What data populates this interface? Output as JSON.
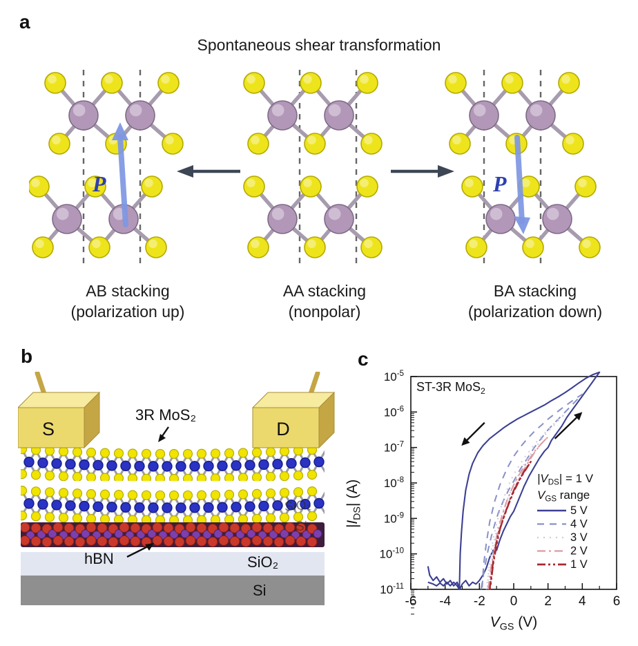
{
  "panel_a": {
    "label": "a",
    "title": "Spontaneous shear transformation",
    "polarization_label": "P",
    "captions": [
      {
        "line1": "AB stacking",
        "line2": "(polarization up)"
      },
      {
        "line1": "AA stacking",
        "line2": "(nonpolar)"
      },
      {
        "line1": "BA stacking",
        "line2": "(polarization down)"
      }
    ],
    "structures": [
      {
        "stacking": "AB",
        "shift": -24,
        "dashed_x": [
          79,
          161
        ],
        "polarization": "up"
      },
      {
        "stacking": "AA",
        "shift": 0,
        "dashed_x": [
          104,
          186
        ],
        "polarization": null
      },
      {
        "stacking": "BA",
        "shift": 24,
        "dashed_x": [
          79,
          161
        ],
        "polarization": "down"
      }
    ],
    "colors": {
      "mo_atom": "#b297b8",
      "mo_edge": "#7d6a85",
      "s_atom": "#eee41c",
      "s_edge": "#b3a900",
      "bond": "#a79cae",
      "dashed_line": "#666666",
      "p_arrow": "#7e97e3",
      "p_text": "#2e3fb0",
      "transform_arrow": "#3c4654"
    }
  },
  "panel_b": {
    "label": "b",
    "source_label": "S",
    "drain_label": "D",
    "mos2_label": "3R MoS₂",
    "hbn_label": "hBN",
    "sio2_label": "SiO₂",
    "si_label": "Si",
    "ghost_sio2_label": "SiO₂",
    "ghost_si_label": "Si",
    "colors": {
      "gold": "#ecd96e",
      "gold_top": "#f6eb9e",
      "gold_side": "#c4a645",
      "gold_edge": "#a88f35",
      "s_atom": "#f0e400",
      "s_edge": "#b8ae00",
      "mo_atom": "#2a33c4",
      "mo_edge": "#151c86",
      "bond": "#9b9ba6",
      "hbn_bg": "#3f1d3c",
      "hbn_red": "#c9382a",
      "hbn_purple": "#7b3fae",
      "sio2_band": "#e2e6f1",
      "si_band": "#8f8f8f"
    }
  },
  "panel_c": {
    "label": "c"
  },
  "chart_data": {
    "type": "line",
    "title": {
      "pre": "ST-3R MoS",
      "sub": "2",
      "post": ""
    },
    "xlabel": {
      "pre": "V",
      "sub": "GS",
      "post": " (V)"
    },
    "ylabel": {
      "pre": "|I",
      "sub": "DS",
      "post": "| (A)"
    },
    "xlim": [
      -6,
      6
    ],
    "ylim_log10": [
      -11,
      -5
    ],
    "x_major_ticks": [
      -6,
      -4,
      -2,
      0,
      2,
      4,
      6
    ],
    "x_minor_ticks": [
      -5,
      -3,
      -1,
      1,
      3,
      5
    ],
    "y_decade_exponents": [
      -5,
      -6,
      -7,
      -8,
      -9,
      -10,
      -11
    ],
    "grid": false,
    "legend": {
      "position": "inside-right",
      "header1": {
        "pre": "|V",
        "sub": "DS",
        "post": "| = 1 V"
      },
      "header2": {
        "pre": "V",
        "sub": "GS",
        "post": " range"
      }
    },
    "sweep_arrows": [
      {
        "from": [
          -1.7,
          -6.3
        ],
        "to": [
          -3.05,
          -6.95
        ]
      },
      {
        "from": [
          2.4,
          -6.75
        ],
        "to": [
          4.0,
          -6.0
        ]
      }
    ],
    "series": [
      {
        "name": "5 V",
        "color": "#3b3f93",
        "dash": "",
        "width": 2.1,
        "points_log10": [
          [
            -5.0,
            -10.35
          ],
          [
            -4.9,
            -10.6
          ],
          [
            -4.7,
            -10.75
          ],
          [
            -4.5,
            -10.65
          ],
          [
            -4.3,
            -10.8
          ],
          [
            -4.1,
            -10.7
          ],
          [
            -3.9,
            -10.85
          ],
          [
            -3.7,
            -10.75
          ],
          [
            -3.5,
            -10.9
          ],
          [
            -3.3,
            -10.8
          ],
          [
            -3.15,
            -11.0
          ],
          [
            -3.0,
            -10.85
          ],
          [
            -2.8,
            -10.75
          ],
          [
            -2.6,
            -10.9
          ],
          [
            -2.4,
            -10.8
          ],
          [
            -2.2,
            -10.85
          ],
          [
            -2.0,
            -10.75
          ],
          [
            -1.8,
            -10.6
          ],
          [
            -1.6,
            -10.4
          ],
          [
            -1.4,
            -10.1
          ],
          [
            -1.2,
            -9.9
          ],
          [
            -1.0,
            -9.9
          ],
          [
            -0.8,
            -9.6
          ],
          [
            -0.6,
            -9.35
          ],
          [
            -0.4,
            -9.15
          ],
          [
            -0.2,
            -8.95
          ],
          [
            0,
            -8.8
          ],
          [
            0.3,
            -8.45
          ],
          [
            0.6,
            -8.1
          ],
          [
            0.9,
            -7.8
          ],
          [
            1.2,
            -7.55
          ],
          [
            1.5,
            -7.3
          ],
          [
            1.8,
            -7.1
          ],
          [
            2.0,
            -7.0
          ],
          [
            2.2,
            -6.8
          ],
          [
            2.5,
            -6.6
          ],
          [
            2.8,
            -6.4
          ],
          [
            3.1,
            -6.15
          ],
          [
            3.4,
            -5.95
          ],
          [
            3.7,
            -5.75
          ],
          [
            4.0,
            -5.55
          ],
          [
            4.3,
            -5.35
          ],
          [
            4.6,
            -5.15
          ],
          [
            4.85,
            -4.98
          ],
          [
            5.0,
            -4.88
          ],
          [
            4.6,
            -4.95
          ],
          [
            4.2,
            -5.05
          ],
          [
            3.8,
            -5.18
          ],
          [
            3.4,
            -5.32
          ],
          [
            3.0,
            -5.45
          ],
          [
            2.6,
            -5.57
          ],
          [
            2.2,
            -5.68
          ],
          [
            1.8,
            -5.8
          ],
          [
            1.4,
            -5.9
          ],
          [
            1.0,
            -6.0
          ],
          [
            0.6,
            -6.1
          ],
          [
            0.2,
            -6.2
          ],
          [
            -0.2,
            -6.32
          ],
          [
            -0.6,
            -6.45
          ],
          [
            -1.0,
            -6.6
          ],
          [
            -1.4,
            -6.75
          ],
          [
            -1.8,
            -6.95
          ],
          [
            -2.1,
            -7.15
          ],
          [
            -2.4,
            -7.45
          ],
          [
            -2.6,
            -7.75
          ],
          [
            -2.8,
            -8.2
          ],
          [
            -2.95,
            -8.8
          ],
          [
            -3.05,
            -9.4
          ],
          [
            -3.12,
            -10.0
          ],
          [
            -3.17,
            -11.0
          ],
          [
            -3.3,
            -10.9
          ],
          [
            -3.5,
            -10.8
          ],
          [
            -3.7,
            -10.9
          ],
          [
            -3.9,
            -10.8
          ],
          [
            -4.1,
            -10.9
          ],
          [
            -4.3,
            -10.82
          ],
          [
            -4.5,
            -10.9
          ],
          [
            -4.7,
            -10.85
          ],
          [
            -5.0,
            -10.8
          ]
        ]
      },
      {
        "name": "4 V",
        "color": "#8890c6",
        "dash": "10,8",
        "width": 2,
        "points_log10": [
          [
            -1.9,
            -11
          ],
          [
            -1.7,
            -10.4
          ],
          [
            -1.5,
            -9.9
          ],
          [
            -1.3,
            -9.5
          ],
          [
            -1.1,
            -9.15
          ],
          [
            -0.9,
            -8.85
          ],
          [
            -0.6,
            -8.5
          ],
          [
            -0.3,
            -8.2
          ],
          [
            0,
            -7.95
          ],
          [
            0.4,
            -7.6
          ],
          [
            0.8,
            -7.3
          ],
          [
            1.2,
            -7.0
          ],
          [
            1.6,
            -6.75
          ],
          [
            2.0,
            -6.5
          ],
          [
            2.4,
            -6.3
          ],
          [
            2.8,
            -6.1
          ],
          [
            3.2,
            -5.9
          ],
          [
            3.6,
            -5.7
          ],
          [
            4.0,
            -5.5
          ],
          [
            3.6,
            -5.62
          ],
          [
            3.2,
            -5.76
          ],
          [
            2.8,
            -5.9
          ],
          [
            2.4,
            -6.05
          ],
          [
            2.0,
            -6.2
          ],
          [
            1.6,
            -6.38
          ],
          [
            1.2,
            -6.55
          ],
          [
            0.8,
            -6.75
          ],
          [
            0.4,
            -6.98
          ],
          [
            0,
            -7.25
          ],
          [
            -0.4,
            -7.6
          ],
          [
            -0.8,
            -8.05
          ],
          [
            -1.1,
            -8.5
          ],
          [
            -1.4,
            -9.1
          ],
          [
            -1.6,
            -9.7
          ],
          [
            -1.75,
            -10.3
          ],
          [
            -1.85,
            -11
          ]
        ]
      },
      {
        "name": "3 V",
        "color": "#ccccdf",
        "dash": "2,7",
        "width": 2,
        "points_log10": [
          [
            -1.6,
            -11
          ],
          [
            -1.4,
            -10.3
          ],
          [
            -1.2,
            -9.75
          ],
          [
            -1.0,
            -9.35
          ],
          [
            -0.7,
            -8.9
          ],
          [
            -0.4,
            -8.5
          ],
          [
            -0.1,
            -8.15
          ],
          [
            0.3,
            -7.75
          ],
          [
            0.7,
            -7.4
          ],
          [
            1.1,
            -7.1
          ],
          [
            1.5,
            -6.85
          ],
          [
            1.9,
            -6.6
          ],
          [
            2.3,
            -6.4
          ],
          [
            2.7,
            -6.2
          ],
          [
            3.0,
            -6.05
          ],
          [
            2.6,
            -6.2
          ],
          [
            2.2,
            -6.4
          ],
          [
            1.8,
            -6.6
          ],
          [
            1.4,
            -6.8
          ],
          [
            1.0,
            -7.05
          ],
          [
            0.6,
            -7.3
          ],
          [
            0.2,
            -7.6
          ],
          [
            -0.2,
            -7.95
          ],
          [
            -0.6,
            -8.45
          ],
          [
            -0.9,
            -8.95
          ],
          [
            -1.2,
            -9.6
          ],
          [
            -1.4,
            -10.2
          ],
          [
            -1.55,
            -11
          ]
        ]
      },
      {
        "name": "2 V",
        "color": "#dc9aa2",
        "dash": "12,5,3,5",
        "width": 2,
        "points_log10": [
          [
            -1.5,
            -11
          ],
          [
            -1.3,
            -10.3
          ],
          [
            -1.1,
            -9.8
          ],
          [
            -0.9,
            -9.4
          ],
          [
            -0.6,
            -8.95
          ],
          [
            -0.3,
            -8.55
          ],
          [
            0,
            -8.2
          ],
          [
            0.4,
            -7.8
          ],
          [
            0.8,
            -7.45
          ],
          [
            1.2,
            -7.15
          ],
          [
            1.6,
            -6.9
          ],
          [
            2.0,
            -6.7
          ],
          [
            1.6,
            -6.9
          ],
          [
            1.2,
            -7.12
          ],
          [
            0.8,
            -7.4
          ],
          [
            0.4,
            -7.7
          ],
          [
            0,
            -8.05
          ],
          [
            -0.4,
            -8.5
          ],
          [
            -0.7,
            -8.95
          ],
          [
            -1.0,
            -9.5
          ],
          [
            -1.2,
            -10.1
          ],
          [
            -1.35,
            -10.7
          ],
          [
            -1.42,
            -11
          ]
        ]
      },
      {
        "name": "1 V",
        "color": "#a52a32",
        "dash": "12,4,3,4,3,4",
        "width": 2.4,
        "points_log10": [
          [
            -1.4,
            -11
          ],
          [
            -1.25,
            -10.4
          ],
          [
            -1.1,
            -9.9
          ],
          [
            -0.9,
            -9.45
          ],
          [
            -0.6,
            -9.0
          ],
          [
            -0.3,
            -8.6
          ],
          [
            0,
            -8.25
          ],
          [
            0.3,
            -7.95
          ],
          [
            0.6,
            -7.7
          ],
          [
            0.8,
            -7.55
          ],
          [
            1.0,
            -7.4
          ],
          [
            0.7,
            -7.6
          ],
          [
            0.4,
            -7.85
          ],
          [
            0.1,
            -8.1
          ],
          [
            -0.2,
            -8.45
          ],
          [
            -0.5,
            -8.85
          ],
          [
            -0.8,
            -9.3
          ],
          [
            -1.0,
            -9.75
          ],
          [
            -1.2,
            -10.3
          ],
          [
            -1.35,
            -10.9
          ],
          [
            -1.4,
            -11
          ]
        ]
      }
    ]
  }
}
